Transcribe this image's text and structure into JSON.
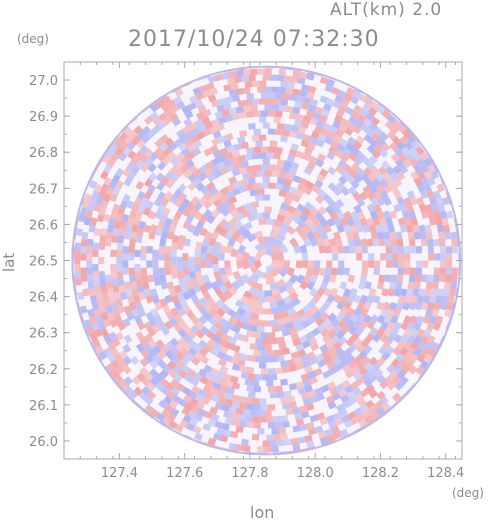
{
  "header": {
    "alt_label": "ALT(km)  2.0",
    "timestamp": "2017/10/24 07:32:30"
  },
  "chart_data": {
    "type": "heatmap",
    "title": "2017/10/24 07:32:30",
    "subtitle": "ALT(km)  2.0",
    "xlabel": "lon",
    "ylabel": "lat",
    "x_unit": "(deg)",
    "y_unit": "(deg)",
    "xlim": [
      127.23,
      128.45
    ],
    "ylim": [
      25.95,
      27.05
    ],
    "x_ticks": [
      127.4,
      127.6,
      127.8,
      128.0,
      128.2,
      128.4
    ],
    "x_tick_labels": [
      "127.4",
      "127.6",
      "127.8",
      "128.0",
      "128.2",
      "128.4"
    ],
    "y_ticks": [
      26.0,
      26.1,
      26.2,
      26.3,
      26.4,
      26.5,
      26.6,
      26.7,
      26.8,
      26.9,
      27.0
    ],
    "y_tick_labels": [
      "26.0",
      "26.1",
      "26.2",
      "26.3",
      "26.4",
      "26.5",
      "26.6",
      "26.7",
      "26.8",
      "26.9",
      "27.0"
    ],
    "center": {
      "lon": 127.85,
      "lat": 26.5
    },
    "radius_deg_lat": 0.54,
    "colors": {
      "positive": "#f08a8a",
      "negative": "#9aa0f0",
      "neutral": "#ffffff",
      "axis": "#aaaaaa",
      "text": "#8c8c8c"
    },
    "grid": false
  }
}
